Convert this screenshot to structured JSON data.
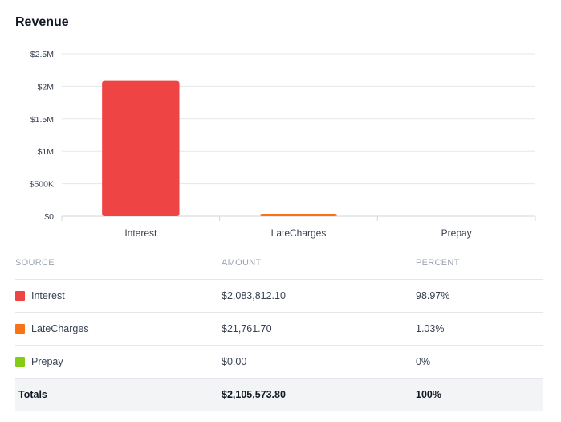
{
  "card": {
    "title": "Revenue"
  },
  "chart_data": {
    "type": "bar",
    "categories": [
      "Interest",
      "LateCharges",
      "Prepay"
    ],
    "values": [
      2083812.1,
      21761.7,
      0
    ],
    "colors": [
      "#ef4444",
      "#f97316",
      "#84cc16"
    ],
    "ylim": [
      0,
      2500000
    ],
    "yticks": [
      {
        "value": 0,
        "label": "$0"
      },
      {
        "value": 500000,
        "label": "$500K"
      },
      {
        "value": 1000000,
        "label": "$1M"
      },
      {
        "value": 1500000,
        "label": "$1.5M"
      },
      {
        "value": 2000000,
        "label": "$2M"
      },
      {
        "value": 2500000,
        "label": "$2.5M"
      }
    ],
    "grid": true,
    "title": "",
    "xlabel": "",
    "ylabel": ""
  },
  "table": {
    "headers": {
      "source": "SOURCE",
      "amount": "AMOUNT",
      "percent": "PERCENT"
    },
    "rows": [
      {
        "source": "Interest",
        "amount": "$2,083,812.10",
        "percent": "98.97%",
        "color": "#ef4444"
      },
      {
        "source": "LateCharges",
        "amount": "$21,761.70",
        "percent": "1.03%",
        "color": "#f97316"
      },
      {
        "source": "Prepay",
        "amount": "$0.00",
        "percent": "0%",
        "color": "#84cc16"
      }
    ],
    "totals": {
      "label": "Totals",
      "amount": "$2,105,573.80",
      "percent": "100%"
    }
  }
}
